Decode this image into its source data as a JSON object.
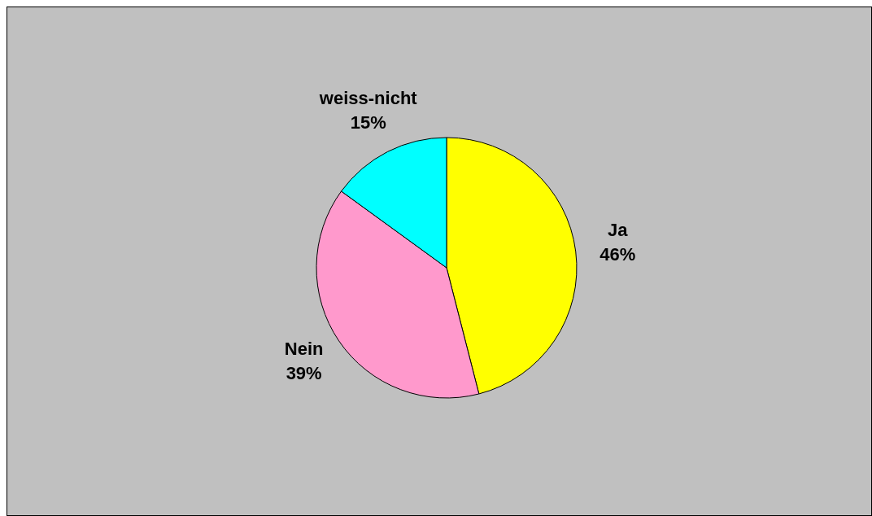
{
  "chart_data": {
    "type": "pie",
    "categories": [
      "Ja",
      "Nein",
      "weiss-nicht"
    ],
    "values": [
      46,
      39,
      15
    ],
    "colors": [
      "#ffff00",
      "#ff99cc",
      "#00ffff"
    ],
    "value_labels": [
      "46%",
      "39%",
      "15%"
    ]
  }
}
